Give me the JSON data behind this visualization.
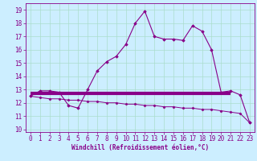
{
  "xlabel": "Windchill (Refroidissement éolien,°C)",
  "ylabel": "",
  "bg_color": "#cceeff",
  "grid_color": "#aaddcc",
  "line_color": "#880088",
  "x_upper": [
    0,
    1,
    2,
    3,
    4,
    5,
    6,
    7,
    8,
    9,
    10,
    11,
    12,
    13,
    14,
    15,
    16,
    17,
    18,
    19,
    20,
    21,
    22,
    23
  ],
  "y_upper": [
    12.5,
    12.9,
    12.9,
    12.8,
    11.8,
    11.6,
    13.0,
    14.4,
    15.1,
    15.5,
    16.4,
    18.0,
    18.9,
    17.0,
    16.8,
    16.8,
    16.7,
    17.8,
    17.4,
    16.0,
    12.8,
    12.9,
    12.6,
    10.5
  ],
  "x_lower": [
    0,
    1,
    2,
    3,
    4,
    5,
    6,
    7,
    8,
    9,
    10,
    11,
    12,
    13,
    14,
    15,
    16,
    17,
    18,
    19,
    20,
    21,
    22,
    23
  ],
  "y_lower": [
    12.5,
    12.4,
    12.3,
    12.3,
    12.2,
    12.2,
    12.1,
    12.1,
    12.0,
    12.0,
    11.9,
    11.9,
    11.8,
    11.8,
    11.7,
    11.7,
    11.6,
    11.6,
    11.5,
    11.5,
    11.4,
    11.3,
    11.2,
    10.5
  ],
  "x_hline": [
    0,
    21
  ],
  "y_hline": [
    12.7,
    12.7
  ],
  "ylim": [
    9.8,
    19.5
  ],
  "xlim": [
    -0.5,
    23.5
  ],
  "yticks": [
    10,
    11,
    12,
    13,
    14,
    15,
    16,
    17,
    18,
    19
  ],
  "xticks": [
    0,
    1,
    2,
    3,
    4,
    5,
    6,
    7,
    8,
    9,
    10,
    11,
    12,
    13,
    14,
    15,
    16,
    17,
    18,
    19,
    20,
    21,
    22,
    23
  ],
  "tick_fontsize": 5.5,
  "label_fontsize": 5.5
}
